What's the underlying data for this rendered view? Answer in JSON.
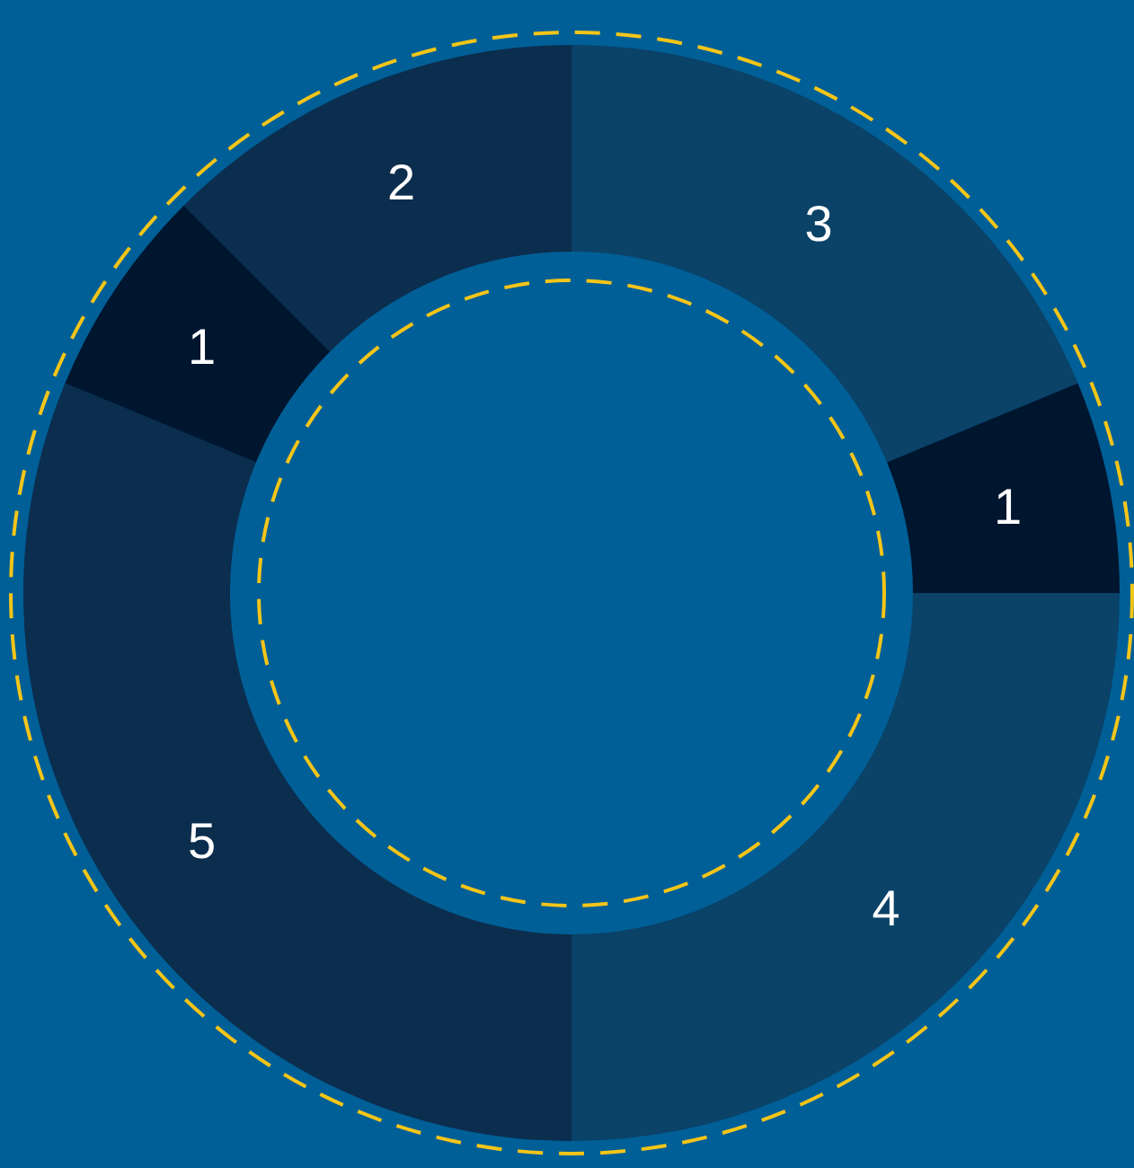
{
  "chart_data": {
    "type": "donut",
    "categories": [
      null,
      null,
      null,
      null,
      null,
      null
    ],
    "values": [
      3,
      1,
      4,
      5,
      1,
      2
    ],
    "colors": [
      "#0a4268",
      "#00152e",
      "#0a4268",
      "#0b2d4e",
      "#00152e",
      "#0b2d4e"
    ],
    "data_labels": true
  }
}
